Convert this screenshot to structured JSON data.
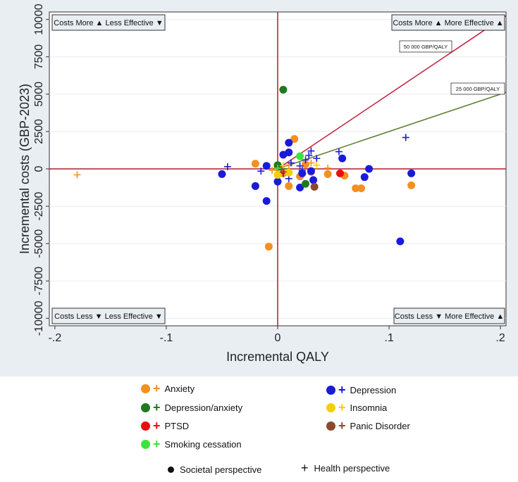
{
  "chart_data": {
    "type": "scatter",
    "xlabel": "Incremental QALY",
    "ylabel": "Incremental costs (GBP-2023)",
    "xlim": [
      -0.205,
      0.205
    ],
    "ylim": [
      -10500,
      10500
    ],
    "x_ticks": [
      -0.2,
      -0.1,
      0,
      0.1,
      0.2
    ],
    "x_tick_labels": [
      "-.2",
      "-.1",
      "0",
      ".1",
      ".2"
    ],
    "y_ticks": [
      10000,
      7500,
      5000,
      2500,
      0,
      -2500,
      -5000,
      -7500,
      -10000
    ],
    "y_tick_labels": [
      "10000",
      "7500",
      "5000",
      "2500",
      "0",
      "-2500",
      "-5000",
      "-7500",
      "-10000"
    ],
    "quadrant_labels": {
      "top_left": "Costs More ▲ Less Effective ▼",
      "top_right": "Costs More ▲ More Effective ▲",
      "bottom_left": "Costs Less ▼ Less Effective ▼",
      "bottom_right": "Costs Less ▼ More Effective ▲"
    },
    "thresholds": [
      {
        "label": "50 000 GBP/QALY",
        "slope": 50000,
        "color": "#c21f3a"
      },
      {
        "label": "25 000 GBP/QALY",
        "slope": 25000,
        "color": "#5a7a2a"
      }
    ],
    "series": [
      {
        "name": "Anxiety",
        "color": "#f39021",
        "societal": [
          [
            0.015,
            2000
          ],
          [
            0.02,
            -500
          ],
          [
            0.025,
            300
          ],
          [
            0.045,
            -350
          ],
          [
            0.06,
            -450
          ],
          [
            0.07,
            -1300
          ],
          [
            0.075,
            -1300
          ],
          [
            0.12,
            -1100
          ],
          [
            -0.02,
            350
          ],
          [
            -0.008,
            -5200
          ],
          [
            0.01,
            -1150
          ],
          [
            0.03,
            -200
          ],
          [
            0.005,
            -300
          ],
          [
            0.0,
            100
          ]
        ],
        "health": [
          [
            -0.18,
            -400
          ],
          [
            -0.005,
            -100
          ],
          [
            0.01,
            250
          ],
          [
            0.045,
            50
          ],
          [
            0.03,
            400
          ]
        ]
      },
      {
        "name": "Depression",
        "color": "#1a1adb",
        "societal": [
          [
            -0.05,
            -350
          ],
          [
            -0.02,
            -1150
          ],
          [
            -0.01,
            -2150
          ],
          [
            0.0,
            -850
          ],
          [
            0.005,
            950
          ],
          [
            0.01,
            1750
          ],
          [
            0.01,
            1100
          ],
          [
            0.02,
            -1250
          ],
          [
            0.022,
            -300
          ],
          [
            0.03,
            -150
          ],
          [
            0.032,
            -750
          ],
          [
            0.058,
            700
          ],
          [
            0.078,
            -550
          ],
          [
            0.082,
            0
          ],
          [
            0.11,
            -4850
          ],
          [
            0.12,
            -300
          ],
          [
            -0.01,
            200
          ]
        ],
        "health": [
          [
            -0.045,
            150
          ],
          [
            -0.015,
            -150
          ],
          [
            0.005,
            -300
          ],
          [
            0.01,
            -650
          ],
          [
            0.02,
            200
          ],
          [
            0.025,
            600
          ],
          [
            0.028,
            900
          ],
          [
            0.03,
            1200
          ],
          [
            0.035,
            700
          ],
          [
            0.055,
            1150
          ],
          [
            0.115,
            2100
          ],
          [
            0.012,
            400
          ],
          [
            0.022,
            -100
          ]
        ]
      },
      {
        "name": "Depression/anxiety",
        "color": "#1f7a1f",
        "societal": [
          [
            0.005,
            5300
          ],
          [
            0.025,
            -1000
          ],
          [
            0.0,
            250
          ]
        ],
        "health": [
          [
            0.005,
            0
          ]
        ]
      },
      {
        "name": "Insomnia",
        "color": "#f5d000",
        "societal": [
          [
            0.0,
            -400
          ],
          [
            0.01,
            -250
          ]
        ],
        "health": [
          [
            0.005,
            200
          ],
          [
            0.035,
            250
          ]
        ]
      },
      {
        "name": "PTSD",
        "color": "#e61010",
        "societal": [
          [
            0.056,
            -300
          ]
        ],
        "health": [
          [
            0.005,
            -200
          ]
        ]
      },
      {
        "name": "Panic Disorder",
        "color": "#8b4a2b",
        "societal": [
          [
            0.033,
            -1200
          ]
        ],
        "health": [
          [
            0.003,
            -50
          ]
        ]
      },
      {
        "name": "Smoking cessation",
        "color": "#3ce33c",
        "societal": [
          [
            0.02,
            850
          ]
        ],
        "health": [
          [
            0.0,
            50
          ]
        ]
      }
    ],
    "perspective_legend": {
      "societal": "Societal perspective",
      "health": "Health perspective"
    }
  }
}
